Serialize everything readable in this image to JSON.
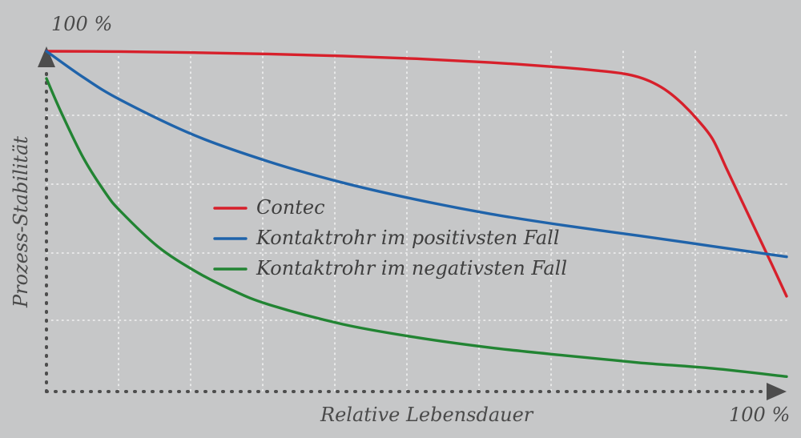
{
  "chart_data": {
    "type": "line",
    "title": "",
    "xlabel": "Relative Lebensdauer",
    "ylabel": "Prozess-Stabilität",
    "x_max_label": "100 %",
    "y_max_label": "100 %",
    "xlim": [
      0,
      100
    ],
    "ylim": [
      0,
      100
    ],
    "grid": true,
    "legend_position": "center-left",
    "series": [
      {
        "name": "Contec",
        "color": "#d7202b",
        "x": [
          0,
          10,
          20,
          30,
          40,
          50,
          60,
          70,
          75,
          78,
          80,
          82,
          84,
          86,
          88,
          90,
          92,
          94,
          96,
          98,
          100
        ],
        "y": [
          100,
          99.9,
          99.6,
          99.2,
          98.6,
          97.8,
          96.7,
          95.2,
          94.2,
          93.4,
          92.4,
          90.7,
          88.1,
          84.4,
          79.8,
          74.2,
          65,
          55.8,
          46.6,
          37.4,
          28
        ]
      },
      {
        "name": "Kontaktrohr im positivsten Fall",
        "color": "#1f63aa",
        "x": [
          0,
          5,
          10,
          20,
          30,
          40,
          50,
          60,
          70,
          80,
          90,
          100
        ],
        "y": [
          100,
          92.3,
          85.7,
          75.3,
          67.6,
          61.4,
          56.4,
          52.2,
          48.8,
          45.8,
          42.7,
          39.6
        ]
      },
      {
        "name": "Kontaktrohr im negativsten Fall",
        "color": "#228433",
        "x": [
          0,
          2,
          5,
          8,
          10,
          15,
          20,
          25,
          30,
          40,
          50,
          60,
          70,
          80,
          90,
          100
        ],
        "y": [
          92,
          82,
          68.6,
          58.3,
          53,
          42.7,
          35.5,
          29.9,
          25.6,
          19.8,
          15.9,
          12.9,
          10.6,
          8.5,
          6.8,
          4.4
        ]
      }
    ]
  }
}
